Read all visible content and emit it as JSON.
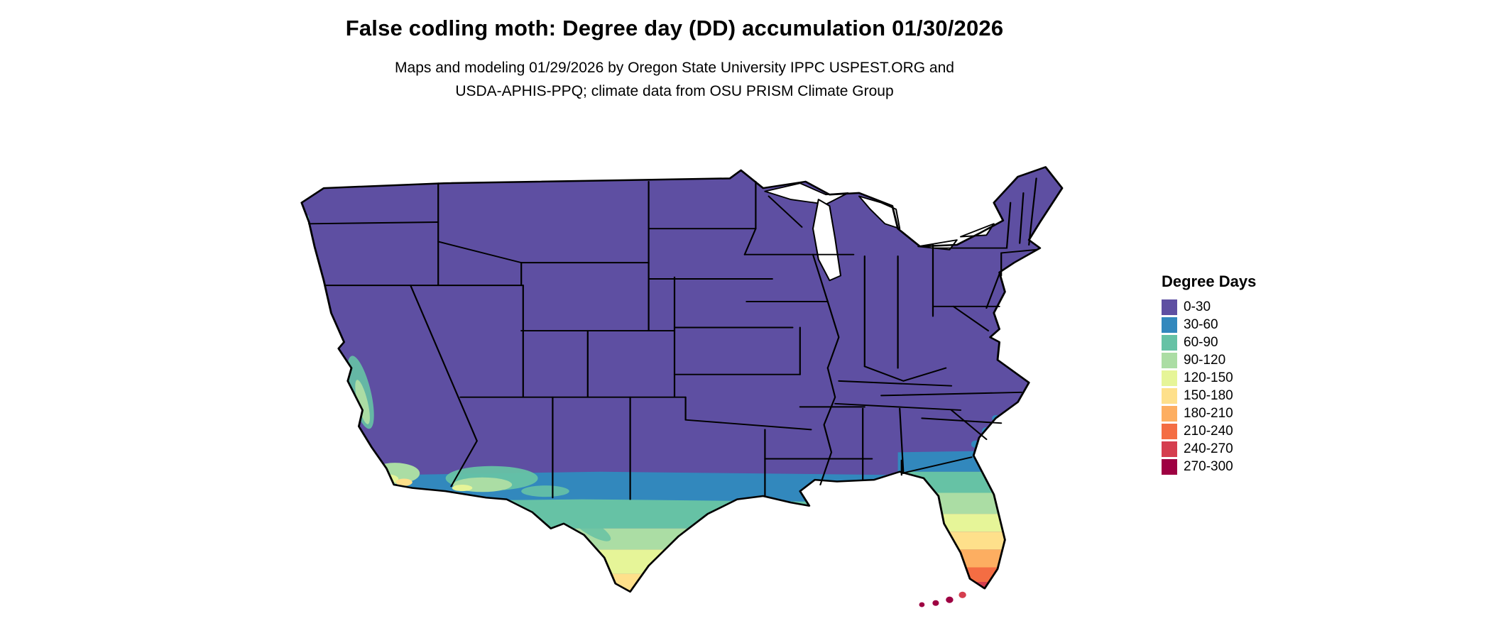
{
  "header": {
    "title": "False codling moth: Degree day (DD) accumulation 01/30/2026",
    "subtitle_lines": [
      "Maps and modeling 01/29/2026 by Oregon State University IPPC USPEST.ORG and",
      "USDA-APHIS-PPQ; climate data from OSU PRISM Climate Group"
    ]
  },
  "legend": {
    "title": "Degree Days",
    "entries": [
      {
        "label": "0-30",
        "color": "#5e4fa2"
      },
      {
        "label": "30-60",
        "color": "#3288bd"
      },
      {
        "label": "60-90",
        "color": "#66c2a5"
      },
      {
        "label": "90-120",
        "color": "#abdda4"
      },
      {
        "label": "120-150",
        "color": "#e6f598"
      },
      {
        "label": "150-180",
        "color": "#fee08b"
      },
      {
        "label": "180-210",
        "color": "#fdae61"
      },
      {
        "label": "210-240",
        "color": "#f46d43"
      },
      {
        "label": "240-270",
        "color": "#d53e4f"
      },
      {
        "label": "270-300",
        "color": "#9e0142"
      }
    ]
  },
  "colors": {
    "background": "#ffffff",
    "text": "#000000",
    "state_border": "#000000"
  },
  "chart_data": {
    "type": "choropleth",
    "region": "Continental United States",
    "variable": "False codling moth degree day (DD) accumulation",
    "map_date": "01/30/2026",
    "model_date": "01/29/2026",
    "legend_title": "Degree Days",
    "classes": [
      {
        "range": "0-30",
        "color": "#5e4fa2"
      },
      {
        "range": "30-60",
        "color": "#3288bd"
      },
      {
        "range": "60-90",
        "color": "#66c2a5"
      },
      {
        "range": "90-120",
        "color": "#abdda4"
      },
      {
        "range": "120-150",
        "color": "#e6f598"
      },
      {
        "range": "150-180",
        "color": "#fee08b"
      },
      {
        "range": "180-210",
        "color": "#fdae61"
      },
      {
        "range": "210-240",
        "color": "#f46d43"
      },
      {
        "range": "240-270",
        "color": "#d53e4f"
      },
      {
        "range": "270-300",
        "color": "#9e0142"
      }
    ],
    "spatial_pattern": "Most of the continental US is in the 0-30 class (purple). Bands of increasing accumulation (30-180) run along the Gulf Coast and through southern and coastal Texas; patches of 60-180 occur in central/southern California and southern Arizona/New Mexico; a 30-60 band crosses northern Florida and coastal Georgia/South Carolina; peninsular Florida grades from 60-90 in the north to 210-300 at the southern tip and Florida Keys."
  }
}
